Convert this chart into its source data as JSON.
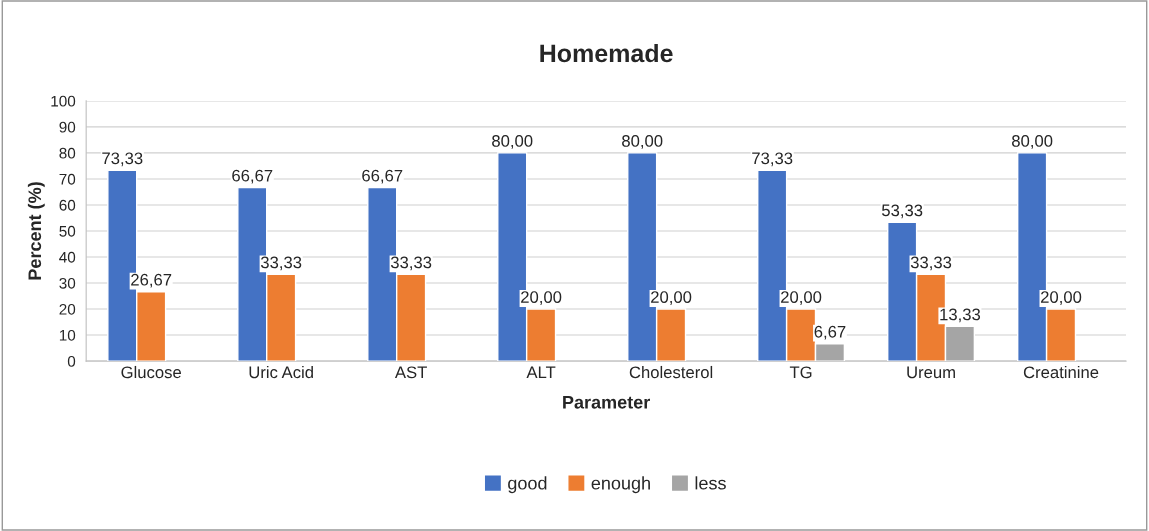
{
  "chart_data": {
    "type": "bar",
    "title": "Homemade",
    "xlabel": "Parameter",
    "ylabel": "Percent (%)",
    "categories": [
      "Glucose",
      "Uric Acid",
      "AST",
      "ALT",
      "Cholesterol",
      "TG",
      "Ureum",
      "Creatinine"
    ],
    "series": [
      {
        "name": "good",
        "color": "#4472c4",
        "values": [
          73.33,
          66.67,
          66.67,
          80.0,
          80.0,
          73.33,
          53.33,
          80.0
        ],
        "value_labels": [
          "73,33",
          "66,67",
          "66,67",
          "80,00",
          "80,00",
          "73,33",
          "53,33",
          "80,00"
        ]
      },
      {
        "name": "enough",
        "color": "#ed7d31",
        "values": [
          26.67,
          33.33,
          33.33,
          20.0,
          20.0,
          20.0,
          33.33,
          20.0
        ],
        "value_labels": [
          "26,67",
          "33,33",
          "33,33",
          "20,00",
          "20,00",
          "20,00",
          "33,33",
          "20,00"
        ]
      },
      {
        "name": "less",
        "color": "#a5a5a5",
        "values": [
          null,
          null,
          null,
          null,
          null,
          6.67,
          13.33,
          null
        ],
        "value_labels": [
          null,
          null,
          null,
          null,
          null,
          "6,67",
          "13,33",
          null
        ]
      }
    ],
    "ylim": [
      0,
      100
    ],
    "yticks": [
      0,
      10,
      20,
      30,
      40,
      50,
      60,
      70,
      80,
      90,
      100
    ],
    "grid": "y",
    "legend": "bottom"
  }
}
